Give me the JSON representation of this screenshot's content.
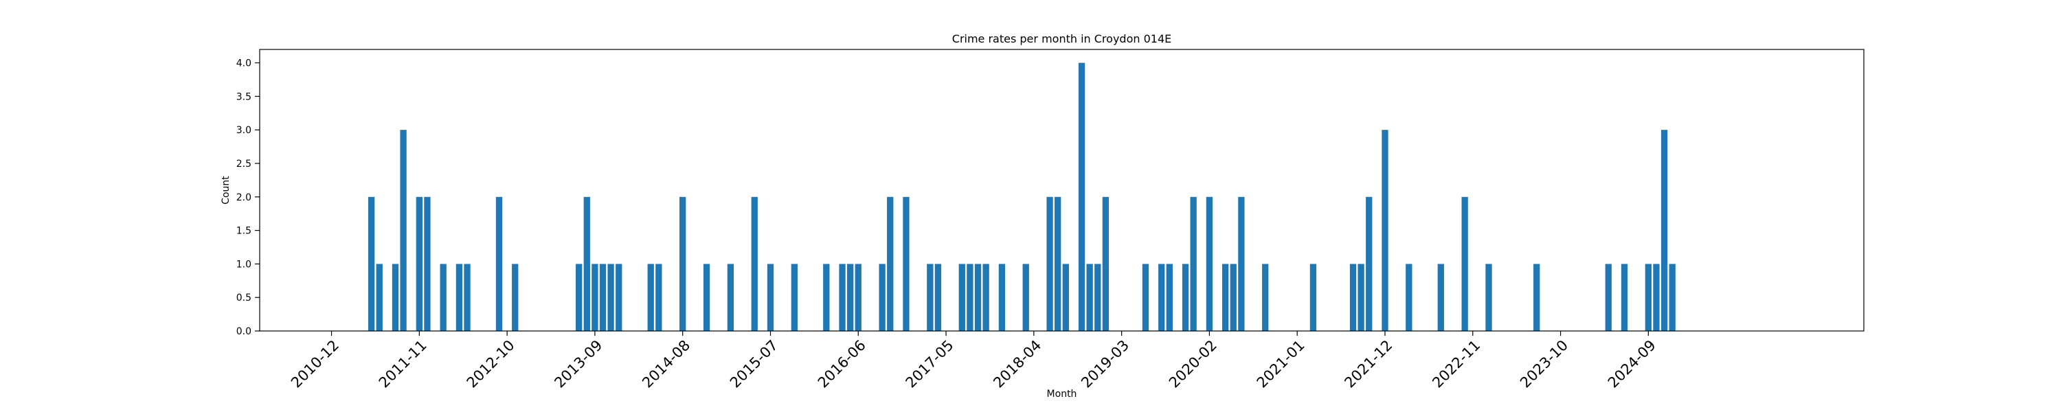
{
  "chart_data": {
    "type": "bar",
    "title": "Crime rates per month in Croydon 014E",
    "xlabel": "Month",
    "ylabel": "Count",
    "ylim": [
      0,
      4.2
    ],
    "xlim": [
      "2010-03",
      "2026-12"
    ],
    "y_ticks": [
      "0.0",
      "0.5",
      "1.0",
      "1.5",
      "2.0",
      "2.5",
      "3.0",
      "3.5",
      "4.0"
    ],
    "x_ticks": [
      "2010-12",
      "2011-11",
      "2012-10",
      "2013-09",
      "2014-08",
      "2015-07",
      "2016-06",
      "2017-05",
      "2018-04",
      "2019-03",
      "2020-02",
      "2021-01",
      "2021-12",
      "2022-11",
      "2023-10",
      "2024-09"
    ],
    "grid": false,
    "color": "#1f77b4",
    "x": [
      "2011-05",
      "2011-06",
      "2011-08",
      "2011-09",
      "2011-11",
      "2011-12",
      "2012-02",
      "2012-04",
      "2012-05",
      "2012-09",
      "2012-11",
      "2013-07",
      "2013-08",
      "2013-09",
      "2013-10",
      "2013-11",
      "2013-12",
      "2014-04",
      "2014-05",
      "2014-08",
      "2014-11",
      "2015-02",
      "2015-05",
      "2015-07",
      "2015-10",
      "2016-02",
      "2016-04",
      "2016-05",
      "2016-06",
      "2016-09",
      "2016-10",
      "2016-12",
      "2017-03",
      "2017-04",
      "2017-07",
      "2017-08",
      "2017-09",
      "2017-10",
      "2017-12",
      "2018-03",
      "2018-06",
      "2018-07",
      "2018-08",
      "2018-10",
      "2018-11",
      "2018-12",
      "2019-01",
      "2019-06",
      "2019-08",
      "2019-09",
      "2019-11",
      "2019-12",
      "2020-02",
      "2020-04",
      "2020-05",
      "2020-06",
      "2020-09",
      "2021-03",
      "2021-08",
      "2021-09",
      "2021-10",
      "2021-12",
      "2022-03",
      "2022-07",
      "2022-10",
      "2023-01",
      "2023-07",
      "2024-04",
      "2024-06",
      "2024-09",
      "2024-10",
      "2024-11",
      "2024-12"
    ],
    "values": [
      2,
      1,
      1,
      3,
      2,
      2,
      1,
      1,
      1,
      2,
      1,
      1,
      2,
      1,
      1,
      1,
      1,
      1,
      1,
      2,
      1,
      1,
      2,
      1,
      1,
      1,
      1,
      1,
      1,
      1,
      2,
      2,
      1,
      1,
      1,
      1,
      1,
      1,
      1,
      1,
      2,
      2,
      1,
      4,
      1,
      1,
      2,
      1,
      1,
      1,
      1,
      2,
      2,
      1,
      1,
      2,
      1,
      1,
      1,
      1,
      2,
      3,
      1,
      1,
      2,
      1,
      1,
      1,
      1,
      1,
      1,
      3,
      1
    ]
  }
}
